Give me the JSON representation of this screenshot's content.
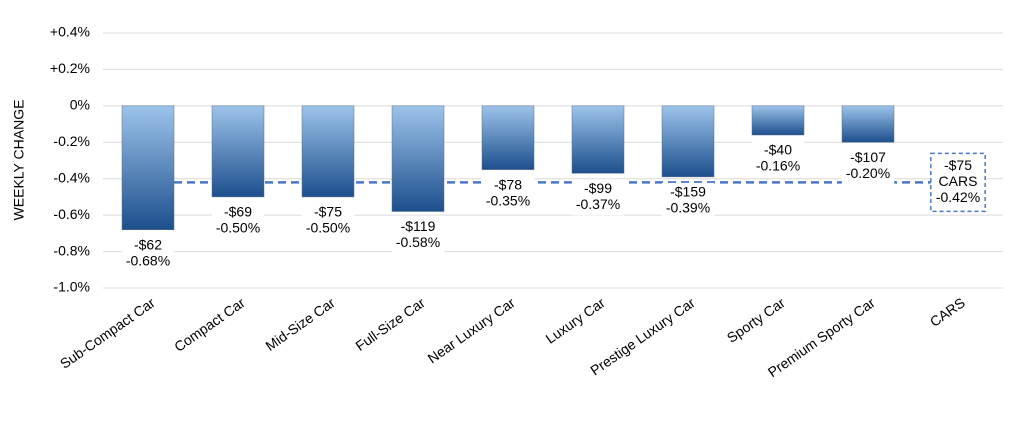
{
  "chart_data": {
    "type": "bar",
    "y_label": "WEEKLY CHANGE",
    "categories": [
      "Sub-Compact Car",
      "Compact Car",
      "Mid-Size Car",
      "Full-Size Car",
      "Near Luxury Car",
      "Luxury Car",
      "Prestige Luxury Car",
      "Sporty Car",
      "Premium Sporty Car",
      "CARS"
    ],
    "values": [
      -0.68,
      -0.5,
      -0.5,
      -0.58,
      -0.35,
      -0.37,
      -0.39,
      -0.16,
      -0.2,
      -0.42
    ],
    "value_labels": [
      "-0.68%",
      "-0.50%",
      "-0.50%",
      "-0.58%",
      "-0.35%",
      "-0.37%",
      "-0.39%",
      "-0.16%",
      "-0.20%",
      "-0.42%"
    ],
    "dollar_labels": [
      "-$62",
      "-$69",
      "-$75",
      "-$119",
      "-$78",
      "-$99",
      "-$159",
      "-$40",
      "-$107",
      "-$75"
    ],
    "last_as_reference_line": true,
    "bar_colors": [
      "#9cc3ea",
      "#1d4f8d"
    ],
    "reference_color": "#4a78c8",
    "ylim": [
      -1.0,
      0.4
    ],
    "yticks": [
      {
        "value": -1.0,
        "label": "-1.0%"
      },
      {
        "value": -0.8,
        "label": "-0.8%"
      },
      {
        "value": -0.6,
        "label": "-0.6%"
      },
      {
        "value": -0.4,
        "label": "-0.4%"
      },
      {
        "value": -0.2,
        "label": "-0.2%"
      },
      {
        "value": 0,
        "label": "0%"
      },
      {
        "value": 0.2,
        "label": "+0.2%"
      },
      {
        "value": 0.4,
        "label": "+0.4%"
      }
    ],
    "grid": true
  }
}
